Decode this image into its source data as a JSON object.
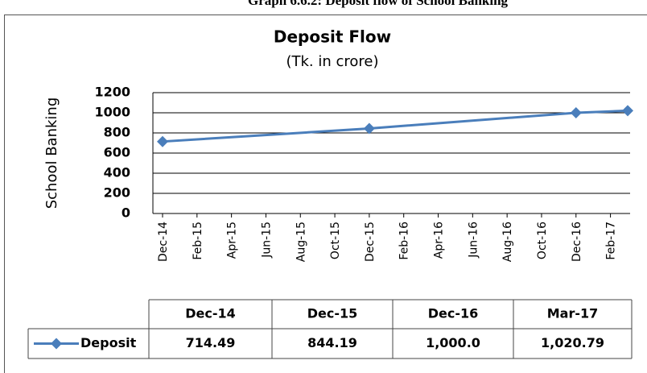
{
  "caption": "Graph 6.6.2: Deposit flow of School Banking",
  "chart_data": {
    "type": "line",
    "title": "Deposit Flow",
    "subtitle": "(Tk. in crore)",
    "y_label": "School Banking",
    "x": [
      "Dec-14",
      "Dec-15",
      "Dec-16",
      "Mar-17"
    ],
    "xlim": [
      "Dec-14",
      "Mar-17"
    ],
    "xticks": [
      "Dec-14",
      "Feb-15",
      "Apr-15",
      "Jun-15",
      "Aug-15",
      "Oct-15",
      "Dec-15",
      "Feb-16",
      "Apr-16",
      "Jun-16",
      "Aug-16",
      "Oct-16",
      "Dec-16",
      "Feb-17"
    ],
    "ylim": [
      0,
      1200
    ],
    "yticks": [
      0,
      200,
      400,
      600,
      800,
      1000,
      1200
    ],
    "grid": true,
    "series": [
      {
        "name": "Deposit",
        "color": "#4a7ebb",
        "values": [
          714.49,
          844.19,
          1000.0,
          1020.79
        ],
        "value_labels": [
          "714.49",
          "844.19",
          "1,000.0",
          "1,020.79"
        ]
      }
    ]
  }
}
